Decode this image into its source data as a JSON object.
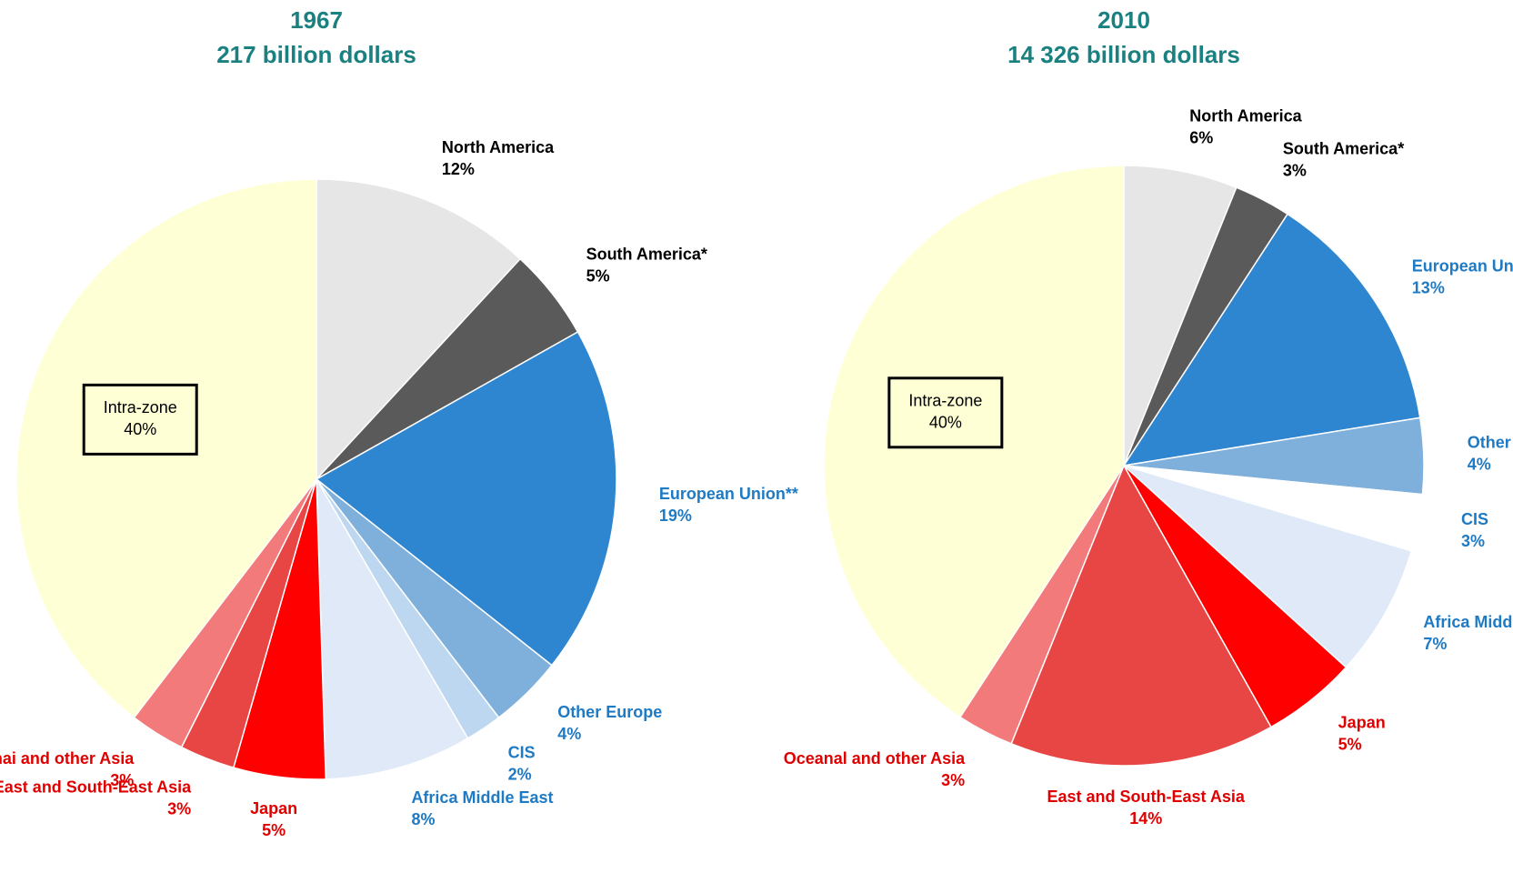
{
  "chart_data": [
    {
      "type": "pie",
      "title": "1967",
      "subtitle": "217 billion dollars",
      "categories": [
        "North America",
        "South America*",
        "European Union**",
        "Other Europe",
        "CIS",
        "Africa Middle East",
        "Japan",
        "East and South-East Asia",
        "Oceanai and other Asia",
        "Intra-zone"
      ],
      "values": [
        12,
        5,
        19,
        4,
        2,
        8,
        5,
        3,
        3,
        40
      ],
      "value_labels": [
        "12%",
        "5%",
        "19%",
        "4%",
        "2%",
        "8%",
        "5%",
        "3%",
        "3%",
        "40%"
      ],
      "colors": [
        "#e6e6e6",
        "#5a5a5a",
        "#2f86d0",
        "#7fb0dc",
        "#bcd7ef",
        "#dfe9f7",
        "#ff0000",
        "#e84545",
        "#f27a7a",
        "#ffffd6"
      ],
      "label_colors": [
        "#000000",
        "#000000",
        "#1f7ac4",
        "#1f7ac4",
        "#1f7ac4",
        "#1f7ac4",
        "#e00000",
        "#e00000",
        "#e00000",
        "#000000"
      ]
    },
    {
      "type": "pie",
      "title": "2010",
      "subtitle": "14 326 billion dollars",
      "categories": [
        "North America",
        "South America*",
        "European Union**",
        "Other Europe",
        "CIS",
        "Africa Middle East",
        "Japan",
        "East and South-East Asia",
        "Oceanal and other Asia",
        "Intra-zone"
      ],
      "values": [
        6,
        3,
        13,
        4,
        3,
        7,
        5,
        14,
        3,
        40
      ],
      "value_labels": [
        "6%",
        "3%",
        "13%",
        "4%",
        "3%",
        "7%",
        "5%",
        "14%",
        "3%",
        "40%"
      ],
      "colors": [
        "#e6e6e6",
        "#5a5a5a",
        "#2f86d0",
        "#7fb0dc",
        "#ffffff",
        "#dfe9f7",
        "#ff0000",
        "#e84545",
        "#f27a7a",
        "#ffffd6"
      ],
      "label_colors": [
        "#000000",
        "#000000",
        "#1f7ac4",
        "#1f7ac4",
        "#1f7ac4",
        "#1f7ac4",
        "#e00000",
        "#e00000",
        "#e00000",
        "#000000"
      ]
    }
  ]
}
